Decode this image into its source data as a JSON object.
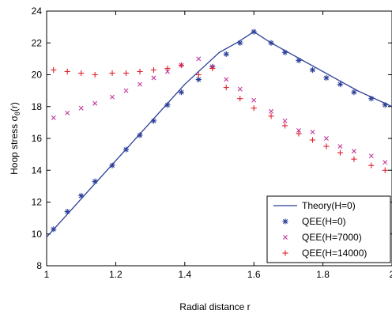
{
  "chart_data": {
    "type": "line",
    "title": "",
    "xlabel": "Radial distance r",
    "ylabel": "Hoop stress σθ(r)",
    "ylabel_main": "Hoop stress σ",
    "ylabel_sub": "θ",
    "ylabel_tail": "(r)",
    "xlim": [
      1,
      2
    ],
    "ylim": [
      8,
      24
    ],
    "xticks": [
      1,
      1.2,
      1.4,
      1.6,
      1.8,
      2
    ],
    "xtick_labels": [
      "1",
      "1.2",
      "1.4",
      "1.6",
      "1.8",
      "2"
    ],
    "yticks": [
      8,
      10,
      12,
      14,
      16,
      18,
      20,
      22,
      24
    ],
    "ytick_labels": [
      "8",
      "10",
      "12",
      "14",
      "16",
      "18",
      "20",
      "22",
      "24"
    ],
    "grid": false,
    "legend_position": "lower-right",
    "series": [
      {
        "name": "Theory(H=0)",
        "style": "line",
        "color": "#2b3f99",
        "x": [
          1.0,
          1.05,
          1.1,
          1.15,
          1.2,
          1.25,
          1.3,
          1.35,
          1.4,
          1.45,
          1.5,
          1.55,
          1.6,
          1.65,
          1.7,
          1.75,
          1.8,
          1.85,
          1.9,
          1.95,
          2.0
        ],
        "y": [
          9.8,
          11.0,
          12.2,
          13.4,
          14.6,
          15.8,
          17.0,
          18.2,
          19.4,
          20.4,
          21.4,
          22.0,
          22.7,
          22.0,
          21.4,
          20.8,
          20.2,
          19.6,
          19.0,
          18.5,
          18.0
        ]
      },
      {
        "name": "QEE(H=0)",
        "style": "asterisk",
        "color": "#2b3f99",
        "x": [
          1.02,
          1.06,
          1.1,
          1.14,
          1.19,
          1.23,
          1.27,
          1.31,
          1.35,
          1.39,
          1.44,
          1.48,
          1.52,
          1.56,
          1.6,
          1.65,
          1.69,
          1.73,
          1.77,
          1.81,
          1.85,
          1.89,
          1.94,
          1.98
        ],
        "y": [
          10.3,
          11.4,
          12.4,
          13.3,
          14.3,
          15.3,
          16.2,
          17.1,
          18.1,
          18.9,
          19.7,
          20.5,
          21.3,
          22.0,
          22.7,
          22.0,
          21.4,
          20.9,
          20.3,
          19.8,
          19.4,
          18.9,
          18.5,
          18.1
        ]
      },
      {
        "name": "QEE(H=7000)",
        "style": "cross",
        "color": "#c0399b",
        "x": [
          1.02,
          1.06,
          1.1,
          1.14,
          1.19,
          1.23,
          1.27,
          1.31,
          1.35,
          1.39,
          1.44,
          1.48,
          1.52,
          1.56,
          1.6,
          1.65,
          1.69,
          1.73,
          1.77,
          1.81,
          1.85,
          1.89,
          1.94,
          1.98
        ],
        "y": [
          17.3,
          17.6,
          17.9,
          18.2,
          18.6,
          19.0,
          19.4,
          19.8,
          20.2,
          20.6,
          21.0,
          20.5,
          19.7,
          19.1,
          18.4,
          17.7,
          17.1,
          16.5,
          16.4,
          16.0,
          15.5,
          15.2,
          14.9,
          14.5
        ]
      },
      {
        "name": "QEE(H=14000)",
        "style": "plus",
        "color": "#e0202b",
        "x": [
          1.02,
          1.06,
          1.1,
          1.14,
          1.19,
          1.23,
          1.27,
          1.31,
          1.35,
          1.39,
          1.44,
          1.48,
          1.52,
          1.56,
          1.6,
          1.65,
          1.69,
          1.73,
          1.77,
          1.81,
          1.85,
          1.89,
          1.94,
          1.98
        ],
        "y": [
          20.3,
          20.2,
          20.1,
          20.0,
          20.1,
          20.1,
          20.2,
          20.3,
          20.4,
          20.6,
          20.0,
          20.4,
          19.2,
          18.5,
          17.9,
          17.4,
          16.8,
          16.3,
          15.9,
          15.5,
          15.1,
          14.7,
          14.3,
          14.0
        ]
      }
    ]
  }
}
